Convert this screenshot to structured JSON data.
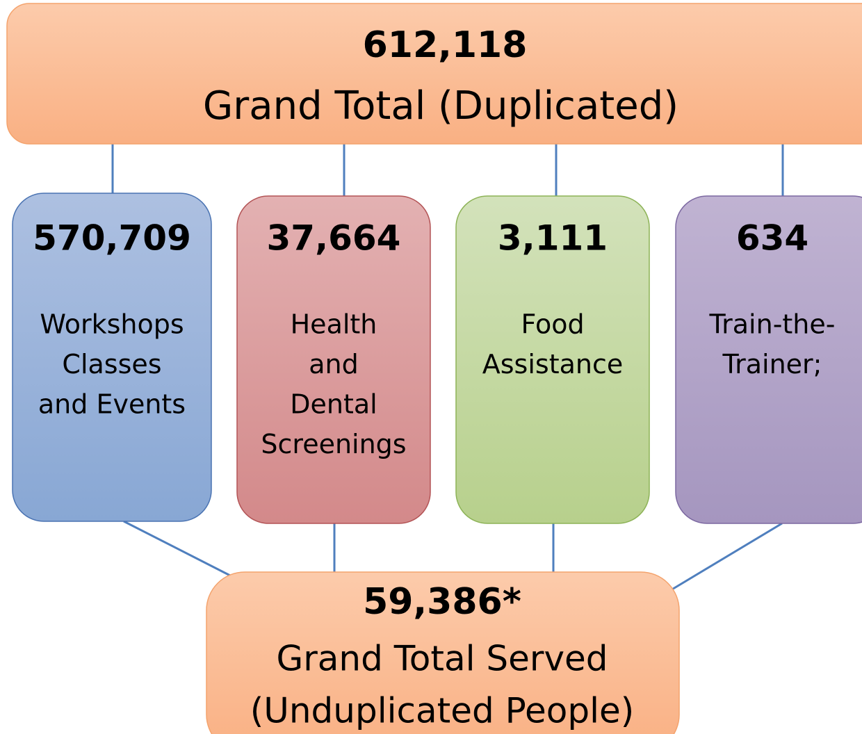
{
  "top": {
    "value": "612,118",
    "label": "Grand Total (Duplicated)"
  },
  "categories": [
    {
      "value": "570,709",
      "lines": [
        "Workshops",
        "Classes",
        "and Events"
      ]
    },
    {
      "value": "37,664",
      "lines": [
        "Health",
        "and",
        "Dental",
        "Screenings"
      ]
    },
    {
      "value": "3,111",
      "lines": [
        "Food",
        "Assistance"
      ]
    },
    {
      "value": "634",
      "lines": [
        "Train-the-",
        "Trainer;"
      ]
    }
  ],
  "bottom": {
    "value": "59,386*",
    "lines": [
      "Grand Total Served",
      "(Unduplicated People)"
    ]
  }
}
